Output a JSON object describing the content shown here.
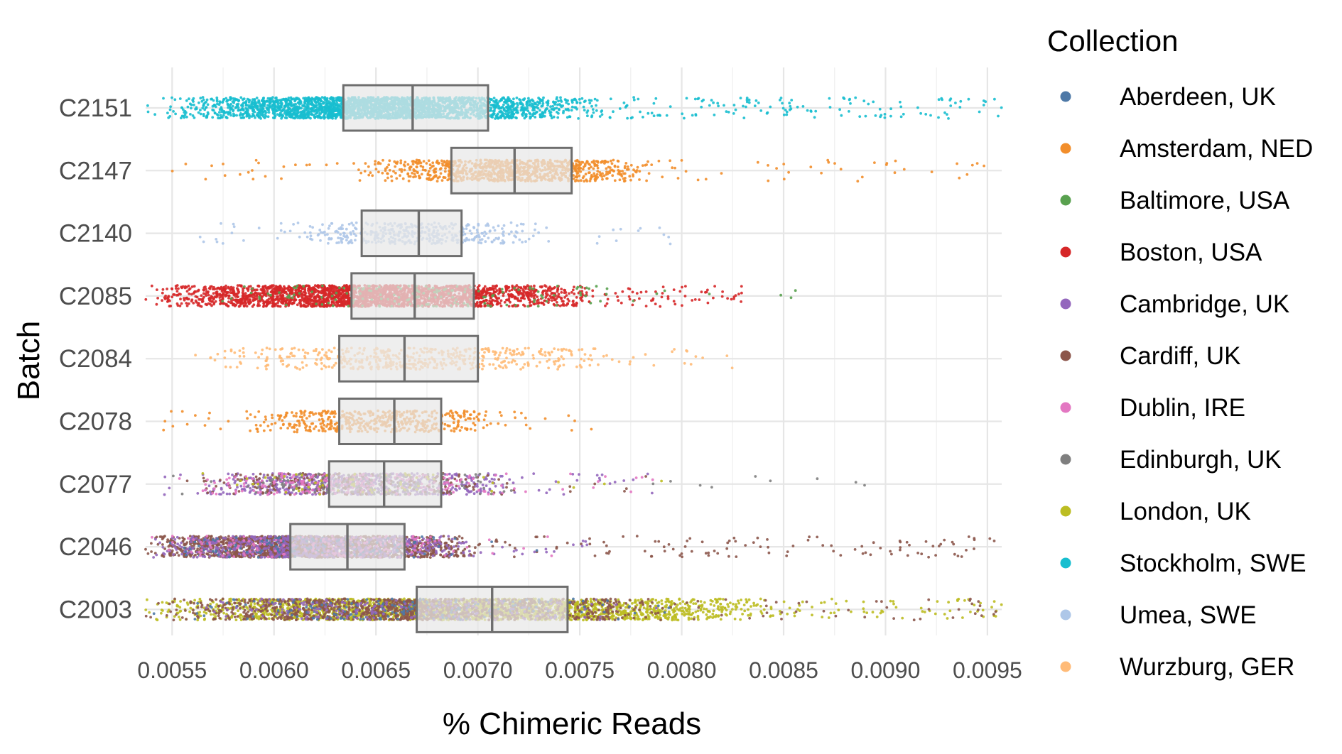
{
  "chart_data": {
    "type": "scatter",
    "subtype": "jittered strip plot with boxplots",
    "xlabel": "% Chimeric Reads",
    "ylabel": "Batch",
    "xlim": [
      0.00537,
      0.00957
    ],
    "x_ticks": [
      "0.0055",
      "0.0060",
      "0.0065",
      "0.0070",
      "0.0075",
      "0.0080",
      "0.0085",
      "0.0090",
      "0.0095"
    ],
    "x_tick_values": [
      0.0055,
      0.006,
      0.0065,
      0.007,
      0.0075,
      0.008,
      0.0085,
      0.009,
      0.0095
    ],
    "grid": true,
    "legend": {
      "title": "Collection",
      "placement": "right",
      "entries": [
        {
          "name": "Aberdeen, UK",
          "color": "#4e79a7"
        },
        {
          "name": "Amsterdam, NED",
          "color": "#f28e2b"
        },
        {
          "name": "Baltimore, USA",
          "color": "#59a14f"
        },
        {
          "name": "Boston, USA",
          "color": "#d62728"
        },
        {
          "name": "Cambridge, UK",
          "color": "#9467bd"
        },
        {
          "name": "Cardiff, UK",
          "color": "#8c564b"
        },
        {
          "name": "Dublin, IRE",
          "color": "#e377c2"
        },
        {
          "name": "Edinburgh, UK",
          "color": "#7f7f7f"
        },
        {
          "name": "London, UK",
          "color": "#bcbd22"
        },
        {
          "name": "Stockholm, SWE",
          "color": "#17becf"
        },
        {
          "name": "Umea, SWE",
          "color": "#aec7e8"
        },
        {
          "name": "Wurzburg, GER",
          "color": "#ffbb78"
        }
      ]
    },
    "categories": [
      "C2151",
      "C2147",
      "C2140",
      "C2085",
      "C2084",
      "C2078",
      "C2077",
      "C2046",
      "C2003"
    ],
    "boxes": [
      {
        "batch": "C2151",
        "q1": 0.00634,
        "median": 0.00668,
        "q3": 0.00705
      },
      {
        "batch": "C2147",
        "q1": 0.00687,
        "median": 0.00718,
        "q3": 0.00746
      },
      {
        "batch": "C2140",
        "q1": 0.00643,
        "median": 0.00671,
        "q3": 0.00692
      },
      {
        "batch": "C2085",
        "q1": 0.00638,
        "median": 0.00669,
        "q3": 0.00698
      },
      {
        "batch": "C2084",
        "q1": 0.00632,
        "median": 0.00664,
        "q3": 0.007
      },
      {
        "batch": "C2078",
        "q1": 0.00632,
        "median": 0.00659,
        "q3": 0.00682
      },
      {
        "batch": "C2077",
        "q1": 0.00627,
        "median": 0.00654,
        "q3": 0.00682
      },
      {
        "batch": "C2046",
        "q1": 0.00608,
        "median": 0.00636,
        "q3": 0.00664
      },
      {
        "batch": "C2003",
        "q1": 0.0067,
        "median": 0.00707,
        "q3": 0.00744
      }
    ],
    "point_groups": [
      {
        "batch": "C2151",
        "collection": "Stockholm, SWE",
        "n": 2800,
        "min": 0.00537,
        "max": 0.00957,
        "core_lo": 0.00545,
        "core_hi": 0.0076,
        "spread": 0.28
      },
      {
        "batch": "C2147",
        "collection": "Amsterdam, NED",
        "n": 1000,
        "min": 0.00545,
        "max": 0.00957,
        "core_lo": 0.0064,
        "core_hi": 0.0079,
        "spread": 0.28
      },
      {
        "batch": "C2140",
        "collection": "Umea, SWE",
        "n": 420,
        "min": 0.00555,
        "max": 0.00795,
        "core_lo": 0.006,
        "core_hi": 0.0074,
        "spread": 0.28
      },
      {
        "batch": "C2085",
        "collection": "Boston, USA",
        "n": 2600,
        "min": 0.00537,
        "max": 0.0083,
        "core_lo": 0.0054,
        "core_hi": 0.0076,
        "spread": 0.28
      },
      {
        "batch": "C2085",
        "collection": "Baltimore, USA",
        "n": 160,
        "min": 0.0054,
        "max": 0.00862,
        "core_lo": 0.0055,
        "core_hi": 0.0077,
        "spread": 0.28
      },
      {
        "batch": "C2084",
        "collection": "Wurzburg, GER",
        "n": 520,
        "min": 0.00545,
        "max": 0.00825,
        "core_lo": 0.0056,
        "core_hi": 0.0078,
        "spread": 0.28
      },
      {
        "batch": "C2078",
        "collection": "Amsterdam, NED",
        "n": 520,
        "min": 0.0054,
        "max": 0.00765,
        "core_lo": 0.0058,
        "core_hi": 0.0072,
        "spread": 0.28
      },
      {
        "batch": "C2077",
        "collection": "Cambridge, UK",
        "n": 700,
        "min": 0.00545,
        "max": 0.00795,
        "core_lo": 0.0056,
        "core_hi": 0.0072,
        "spread": 0.28
      },
      {
        "batch": "C2077",
        "collection": "Cardiff, UK",
        "n": 260,
        "min": 0.00545,
        "max": 0.00795,
        "core_lo": 0.0056,
        "core_hi": 0.0072,
        "spread": 0.28
      },
      {
        "batch": "C2077",
        "collection": "Dublin, IRE",
        "n": 260,
        "min": 0.00545,
        "max": 0.0079,
        "core_lo": 0.0056,
        "core_hi": 0.0072,
        "spread": 0.28
      },
      {
        "batch": "C2077",
        "collection": "Edinburgh, UK",
        "n": 150,
        "min": 0.00545,
        "max": 0.0094,
        "core_lo": 0.0056,
        "core_hi": 0.0072,
        "spread": 0.28
      },
      {
        "batch": "C2077",
        "collection": "London, UK",
        "n": 60,
        "min": 0.00545,
        "max": 0.0082,
        "core_lo": 0.0056,
        "core_hi": 0.0072,
        "spread": 0.28
      },
      {
        "batch": "C2046",
        "collection": "Cardiff, UK",
        "n": 2200,
        "min": 0.00537,
        "max": 0.00957,
        "core_lo": 0.0054,
        "core_hi": 0.007,
        "spread": 0.28
      },
      {
        "batch": "C2046",
        "collection": "Cambridge, UK",
        "n": 700,
        "min": 0.00537,
        "max": 0.0076,
        "core_lo": 0.0054,
        "core_hi": 0.007,
        "spread": 0.28
      },
      {
        "batch": "C2046",
        "collection": "Aberdeen, UK",
        "n": 120,
        "min": 0.00537,
        "max": 0.0074,
        "core_lo": 0.0054,
        "core_hi": 0.007,
        "spread": 0.28
      },
      {
        "batch": "C2046",
        "collection": "Dublin, IRE",
        "n": 160,
        "min": 0.00537,
        "max": 0.0074,
        "core_lo": 0.0054,
        "core_hi": 0.007,
        "spread": 0.28
      },
      {
        "batch": "C2003",
        "collection": "London, UK",
        "n": 2600,
        "min": 0.00537,
        "max": 0.00957,
        "core_lo": 0.0054,
        "core_hi": 0.0085,
        "spread": 0.28
      },
      {
        "batch": "C2003",
        "collection": "Cardiff, UK",
        "n": 1300,
        "min": 0.00537,
        "max": 0.00957,
        "core_lo": 0.0054,
        "core_hi": 0.008,
        "spread": 0.28
      },
      {
        "batch": "C2003",
        "collection": "Aberdeen, UK",
        "n": 180,
        "min": 0.00537,
        "max": 0.008,
        "core_lo": 0.0056,
        "core_hi": 0.0078,
        "spread": 0.28
      },
      {
        "batch": "C2003",
        "collection": "Cambridge, UK",
        "n": 180,
        "min": 0.00537,
        "max": 0.008,
        "core_lo": 0.0056,
        "core_hi": 0.0078,
        "spread": 0.28
      }
    ]
  }
}
